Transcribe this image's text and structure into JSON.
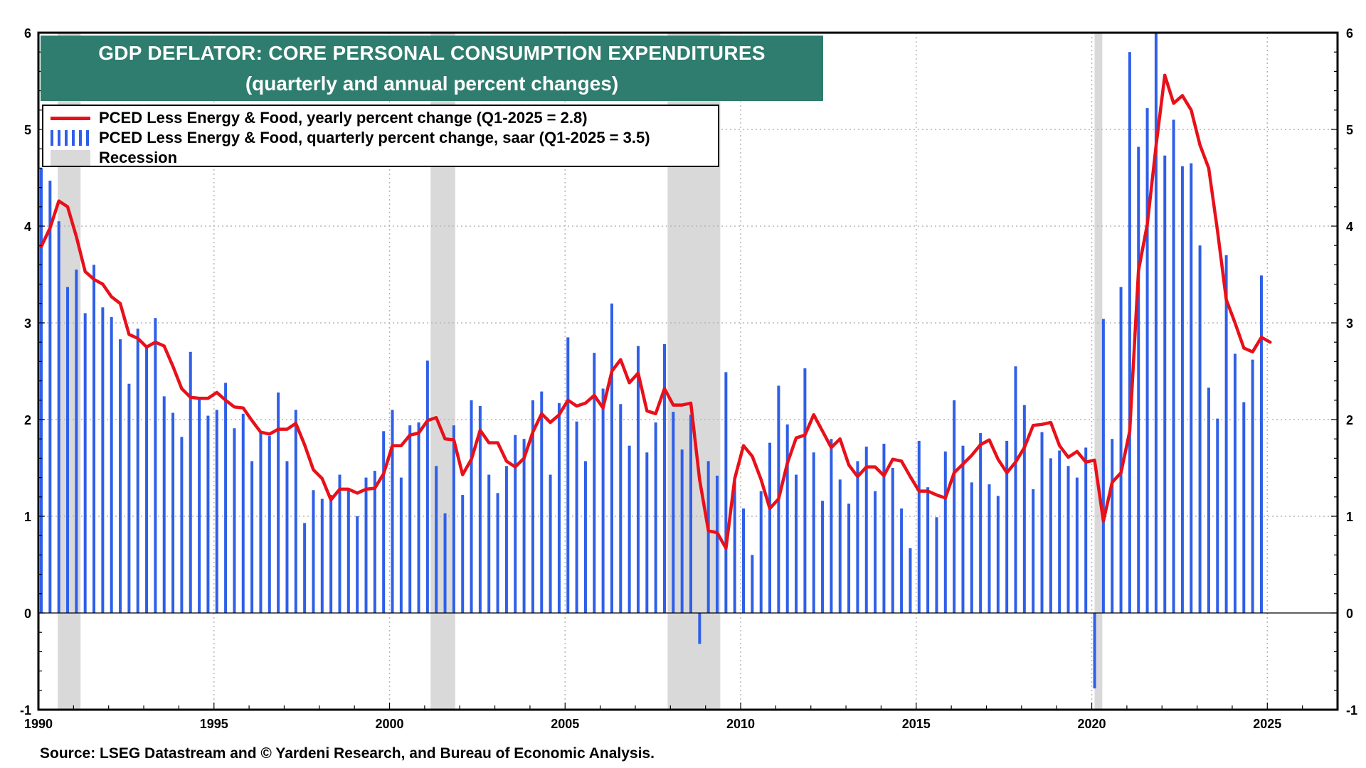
{
  "title": {
    "line1": "GDP DEFLATOR: CORE PERSONAL CONSUMPTION EXPENDITURES",
    "line2": "(quarterly and annual percent changes)"
  },
  "legend": {
    "line_label": "PCED Less Energy & Food,  yearly percent change (Q1-2025 = 2.8)",
    "bar_label": "PCED Less Energy & Food, quarterly percent change, saar  (Q1-2025 = 3.5)",
    "recession_label": "Recession"
  },
  "source": "Source: LSEG Datastream and © Yardeni Research, and Bureau of Economic Analysis.",
  "colors": {
    "line": "#e8101a",
    "bars": "#2f5fe8",
    "recession": "#d9d9d9",
    "title_bg": "#2e7d6e"
  },
  "chart_data": {
    "type": "bar",
    "x_axis": {
      "min": 1990,
      "max": 2027,
      "ticks": [
        "1990",
        "1995",
        "2000",
        "2005",
        "2010",
        "2015",
        "2020",
        "2025"
      ]
    },
    "y_axis": {
      "min": -1,
      "max": 6,
      "ticks": [
        "-1",
        "0",
        "1",
        "2",
        "3",
        "4",
        "5",
        "6"
      ]
    },
    "grid": true,
    "recessions": [
      [
        1990.55,
        1991.2
      ],
      [
        2001.17,
        2001.87
      ],
      [
        2007.92,
        2009.42
      ],
      [
        2020.08,
        2020.3
      ]
    ],
    "series": [
      {
        "type": "bar",
        "start": 1990.0,
        "step": 0.25,
        "values": [
          4.6,
          4.47,
          4.05,
          3.37,
          3.55,
          3.1,
          3.6,
          3.16,
          3.06,
          2.83,
          2.37,
          2.94,
          2.75,
          3.05,
          2.24,
          2.07,
          1.82,
          2.7,
          2.22,
          2.04,
          2.1,
          2.38,
          1.91,
          2.06,
          1.57,
          1.87,
          1.83,
          2.28,
          1.57,
          2.1,
          0.93,
          1.27,
          1.18,
          1.22,
          1.43,
          1.27,
          1.0,
          1.4,
          1.47,
          1.88,
          2.1,
          1.4,
          1.94,
          1.97,
          2.61,
          1.52,
          1.03,
          1.94,
          1.22,
          2.2,
          2.14,
          1.43,
          1.24,
          1.52,
          1.84,
          1.8,
          2.2,
          2.29,
          1.43,
          2.17,
          2.85,
          1.98,
          1.57,
          2.69,
          2.32,
          3.2,
          2.16,
          1.73,
          2.76,
          1.66,
          1.97,
          2.78,
          2.08,
          1.69,
          2.05,
          -0.32,
          1.57,
          1.42,
          2.49,
          1.37,
          1.08,
          0.6,
          1.26,
          1.76,
          2.35,
          1.95,
          1.43,
          2.53,
          1.66,
          1.16,
          1.8,
          1.38,
          1.13,
          1.57,
          1.72,
          1.26,
          1.75,
          1.5,
          1.08,
          0.67,
          1.78,
          1.3,
          0.99,
          1.67,
          2.2,
          1.73,
          1.35,
          1.86,
          1.33,
          1.21,
          1.78,
          2.55,
          2.15,
          1.28,
          1.87,
          1.6,
          1.68,
          1.52,
          1.4,
          1.71,
          -0.78,
          3.04,
          1.8,
          3.37,
          5.8,
          4.82,
          5.22,
          6.0,
          4.73,
          5.1,
          4.62,
          4.65,
          3.8,
          2.33,
          2.01,
          3.7,
          2.68,
          2.18,
          2.62,
          3.49
        ]
      },
      {
        "type": "line",
        "start": 1990.0,
        "step": 0.25,
        "values": [
          3.79,
          3.98,
          4.26,
          4.2,
          3.89,
          3.53,
          3.45,
          3.4,
          3.27,
          3.2,
          2.88,
          2.84,
          2.75,
          2.8,
          2.76,
          2.55,
          2.32,
          2.23,
          2.22,
          2.22,
          2.28,
          2.2,
          2.13,
          2.12,
          1.99,
          1.87,
          1.85,
          1.9,
          1.9,
          1.96,
          1.74,
          1.48,
          1.39,
          1.17,
          1.28,
          1.28,
          1.24,
          1.28,
          1.29,
          1.44,
          1.73,
          1.73,
          1.84,
          1.86,
          1.99,
          2.02,
          1.8,
          1.79,
          1.43,
          1.59,
          1.89,
          1.76,
          1.76,
          1.57,
          1.51,
          1.6,
          1.87,
          2.06,
          1.97,
          2.05,
          2.2,
          2.14,
          2.17,
          2.25,
          2.12,
          2.5,
          2.62,
          2.38,
          2.48,
          2.09,
          2.06,
          2.32,
          2.15,
          2.15,
          2.17,
          1.38,
          0.85,
          0.83,
          0.67,
          1.39,
          1.73,
          1.62,
          1.38,
          1.08,
          1.18,
          1.55,
          1.81,
          1.84,
          2.05,
          1.88,
          1.71,
          1.8,
          1.53,
          1.41,
          1.51,
          1.51,
          1.42,
          1.59,
          1.57,
          1.41,
          1.26,
          1.26,
          1.22,
          1.19,
          1.45,
          1.54,
          1.63,
          1.74,
          1.79,
          1.59,
          1.45,
          1.56,
          1.71,
          1.94,
          1.95,
          1.97,
          1.73,
          1.61,
          1.67,
          1.56,
          1.58,
          0.95,
          1.35,
          1.45,
          1.88,
          3.54,
          4.02,
          4.83,
          5.56,
          5.27,
          5.35,
          5.2,
          4.84,
          4.6,
          3.95,
          3.24,
          3.0,
          2.74,
          2.7,
          2.85,
          2.8
        ]
      }
    ]
  }
}
